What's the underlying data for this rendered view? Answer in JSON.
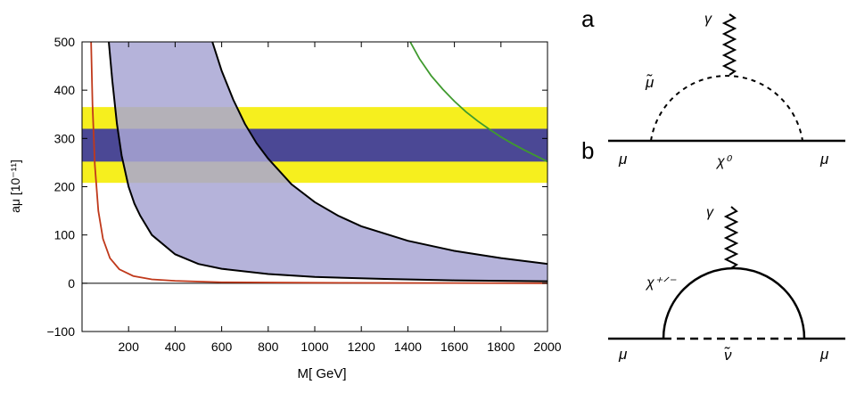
{
  "chart_data": {
    "type": "line",
    "xlabel": "M[ GeV]",
    "ylabel": "aμ [10⁻¹¹]",
    "xlim": [
      0,
      2000
    ],
    "ylim": [
      -100,
      500
    ],
    "xticks": [
      "200",
      "400",
      "600",
      "800",
      "1000",
      "1200",
      "1400",
      "1600",
      "1800",
      "2000"
    ],
    "yticks": [
      "−100",
      "0",
      "100",
      "200",
      "300",
      "400",
      "500"
    ],
    "xtick_values": [
      200,
      400,
      600,
      800,
      1000,
      1200,
      1400,
      1600,
      1800,
      2000
    ],
    "ytick_values": [
      -100,
      0,
      100,
      200,
      300,
      400,
      500
    ],
    "grid": false,
    "bands": [
      {
        "name": "outer band",
        "from": 208,
        "to": 365,
        "color": "#f6ef1e"
      },
      {
        "name": "inner band",
        "from": 252,
        "to": 320,
        "color": "#4b4895"
      }
    ],
    "shaded_region": {
      "between": [
        "black curve upper",
        "black curve lower"
      ],
      "color": "#a8a6d4"
    },
    "series": [
      {
        "color": "#c0391b",
        "x": [
          38,
          45,
          55,
          70,
          90,
          120,
          160,
          220,
          300,
          400,
          600,
          1000,
          2000
        ],
        "y": [
          520,
          370,
          245,
          150,
          92,
          52,
          29,
          15,
          8,
          5,
          2,
          1,
          0
        ]
      },
      {
        "color": "#000000",
        "x": [
          115,
          130,
          150,
          170,
          200,
          225,
          250,
          300,
          400,
          500,
          600,
          800,
          1000,
          1300,
          1600,
          2000
        ],
        "y": [
          500,
          420,
          330,
          265,
          200,
          165,
          140,
          100,
          60,
          40,
          30,
          19,
          13,
          9,
          6,
          4
        ]
      },
      {
        "color": "#000000",
        "x": [
          560,
          600,
          650,
          700,
          750,
          800,
          900,
          1000,
          1100,
          1200,
          1400,
          1600,
          1800,
          2000
        ],
        "y": [
          500,
          440,
          380,
          330,
          290,
          258,
          205,
          168,
          140,
          118,
          88,
          67,
          52,
          40
        ]
      },
      {
        "color": "#3f9a2e",
        "x": [
          1410,
          1450,
          1500,
          1550,
          1600,
          1650,
          1700,
          1750,
          1800,
          1850,
          1900,
          1950,
          2000
        ],
        "y": [
          500,
          465,
          430,
          402,
          377,
          355,
          336,
          319,
          303,
          289,
          276,
          264,
          252
        ]
      }
    ]
  },
  "diagram": {
    "panel_a": "a",
    "panel_b": "b",
    "photon": "γ",
    "smuon": "μ̃",
    "muon": "μ",
    "neutralino": "χ⁰",
    "chargino": "χ⁺ᐟ⁻",
    "sneutrino": "ν̃"
  }
}
